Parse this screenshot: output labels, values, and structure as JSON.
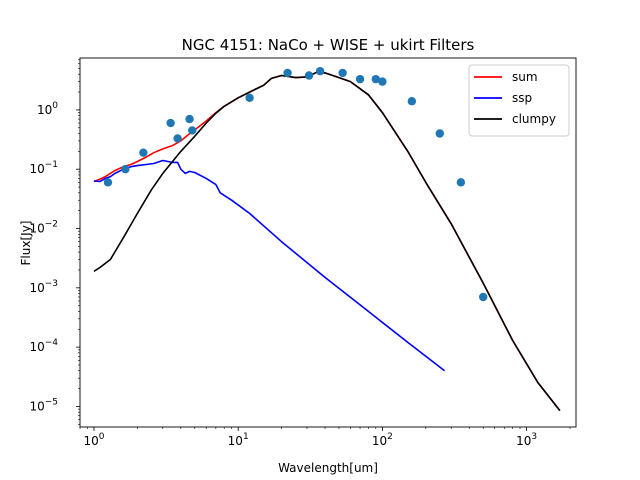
{
  "chart_data": {
    "type": "line",
    "title": "NGC 4151: NaCo + WISE + ukirt Filters",
    "xlabel": "Wavelength[um]",
    "ylabel": "Flux[Jy]",
    "xscale": "log",
    "yscale": "log",
    "xlim": [
      0.8,
      2200
    ],
    "ylim": [
      4.5e-06,
      7.5
    ],
    "grid": false,
    "legend_position": "top-right",
    "xticks": [
      {
        "value": 1,
        "base": "10",
        "exp": "0"
      },
      {
        "value": 10,
        "base": "10",
        "exp": "1"
      },
      {
        "value": 100,
        "base": "10",
        "exp": "2"
      },
      {
        "value": 1000,
        "base": "10",
        "exp": "3"
      }
    ],
    "yticks": [
      {
        "value": 1e-05,
        "base": "10",
        "exp": "−5"
      },
      {
        "value": 0.0001,
        "base": "10",
        "exp": "−4"
      },
      {
        "value": 0.001,
        "base": "10",
        "exp": "−3"
      },
      {
        "value": 0.01,
        "base": "10",
        "exp": "−2"
      },
      {
        "value": 0.1,
        "base": "10",
        "exp": "−1"
      },
      {
        "value": 1,
        "base": "10",
        "exp": "0"
      }
    ],
    "series": [
      {
        "name": "sum",
        "color": "#ff0000",
        "points": [
          [
            1.0,
            0.062
          ],
          [
            1.1,
            0.068
          ],
          [
            1.2,
            0.075
          ],
          [
            1.3,
            0.085
          ],
          [
            1.4,
            0.095
          ],
          [
            1.6,
            0.11
          ],
          [
            1.8,
            0.12
          ],
          [
            2.0,
            0.135
          ],
          [
            2.3,
            0.16
          ],
          [
            2.6,
            0.19
          ],
          [
            3.0,
            0.22
          ],
          [
            3.5,
            0.25
          ],
          [
            4.0,
            0.3
          ],
          [
            4.5,
            0.38
          ],
          [
            5.0,
            0.46
          ],
          [
            6.0,
            0.65
          ],
          [
            7.0,
            0.9
          ],
          [
            8.0,
            1.15
          ],
          [
            10.0,
            1.6
          ],
          [
            13.0,
            2.2
          ],
          [
            15.0,
            2.6
          ],
          [
            17.0,
            3.4
          ],
          [
            20.0,
            3.8
          ],
          [
            25.0,
            3.5
          ],
          [
            30.0,
            3.6
          ],
          [
            35.0,
            4.3
          ],
          [
            40.0,
            4.2
          ],
          [
            50.0,
            3.5
          ],
          [
            60.0,
            3.0
          ],
          [
            80.0,
            1.8
          ],
          [
            100.0,
            0.9
          ],
          [
            150.0,
            0.2
          ],
          [
            200.0,
            0.06
          ],
          [
            300.0,
            0.012
          ],
          [
            500.0,
            0.0012
          ],
          [
            800.0,
            0.00013
          ],
          [
            1200.0,
            2.5e-05
          ],
          [
            1700.0,
            8.5e-06
          ]
        ]
      },
      {
        "name": "ssp",
        "color": "#0000ff",
        "points": [
          [
            1.0,
            0.063
          ],
          [
            1.1,
            0.062
          ],
          [
            1.2,
            0.07
          ],
          [
            1.3,
            0.075
          ],
          [
            1.4,
            0.085
          ],
          [
            1.6,
            0.1
          ],
          [
            1.8,
            0.11
          ],
          [
            2.0,
            0.115
          ],
          [
            2.3,
            0.12
          ],
          [
            2.6,
            0.125
          ],
          [
            3.0,
            0.14
          ],
          [
            3.5,
            0.13
          ],
          [
            3.8,
            0.13
          ],
          [
            4.0,
            0.1
          ],
          [
            4.3,
            0.085
          ],
          [
            4.6,
            0.092
          ],
          [
            5.0,
            0.088
          ],
          [
            6.0,
            0.07
          ],
          [
            7.0,
            0.055
          ],
          [
            7.5,
            0.04
          ],
          [
            9.0,
            0.03
          ],
          [
            12.0,
            0.018
          ],
          [
            20.0,
            0.006
          ],
          [
            40.0,
            0.0015
          ],
          [
            80.0,
            0.0004
          ],
          [
            150.0,
            0.00012
          ],
          [
            270.0,
            4e-05
          ]
        ]
      },
      {
        "name": "clumpy",
        "color": "#000000",
        "points": [
          [
            1.0,
            0.0019
          ],
          [
            1.1,
            0.0022
          ],
          [
            1.3,
            0.003
          ],
          [
            1.6,
            0.007
          ],
          [
            2.0,
            0.018
          ],
          [
            2.5,
            0.045
          ],
          [
            3.0,
            0.085
          ],
          [
            4.0,
            0.2
          ],
          [
            5.0,
            0.36
          ],
          [
            6.0,
            0.6
          ],
          [
            7.0,
            0.88
          ],
          [
            8.0,
            1.15
          ],
          [
            10.0,
            1.6
          ],
          [
            13.0,
            2.2
          ],
          [
            15.0,
            2.6
          ],
          [
            17.0,
            3.4
          ],
          [
            20.0,
            3.8
          ],
          [
            25.0,
            3.5
          ],
          [
            30.0,
            3.6
          ],
          [
            35.0,
            4.3
          ],
          [
            40.0,
            4.2
          ],
          [
            50.0,
            3.5
          ],
          [
            60.0,
            3.0
          ],
          [
            80.0,
            1.8
          ],
          [
            100.0,
            0.9
          ],
          [
            150.0,
            0.2
          ],
          [
            200.0,
            0.06
          ],
          [
            300.0,
            0.012
          ],
          [
            500.0,
            0.0012
          ],
          [
            800.0,
            0.00013
          ],
          [
            1200.0,
            2.5e-05
          ],
          [
            1700.0,
            8.5e-06
          ]
        ]
      },
      {
        "type": "scatter",
        "color": "#1f77b4",
        "points": [
          [
            1.25,
            0.06
          ],
          [
            1.65,
            0.1
          ],
          [
            2.2,
            0.19
          ],
          [
            3.4,
            0.6
          ],
          [
            3.8,
            0.33
          ],
          [
            4.6,
            0.7
          ],
          [
            4.8,
            0.45
          ],
          [
            12.0,
            1.6
          ],
          [
            22.0,
            4.2
          ],
          [
            31.0,
            3.8
          ],
          [
            37.0,
            4.5
          ],
          [
            53.0,
            4.2
          ],
          [
            70.0,
            3.3
          ],
          [
            90.0,
            3.3
          ],
          [
            100.0,
            3.0
          ],
          [
            160.0,
            1.4
          ],
          [
            250.0,
            0.4
          ],
          [
            350.0,
            0.06
          ],
          [
            500.0,
            0.0007
          ]
        ]
      }
    ]
  }
}
